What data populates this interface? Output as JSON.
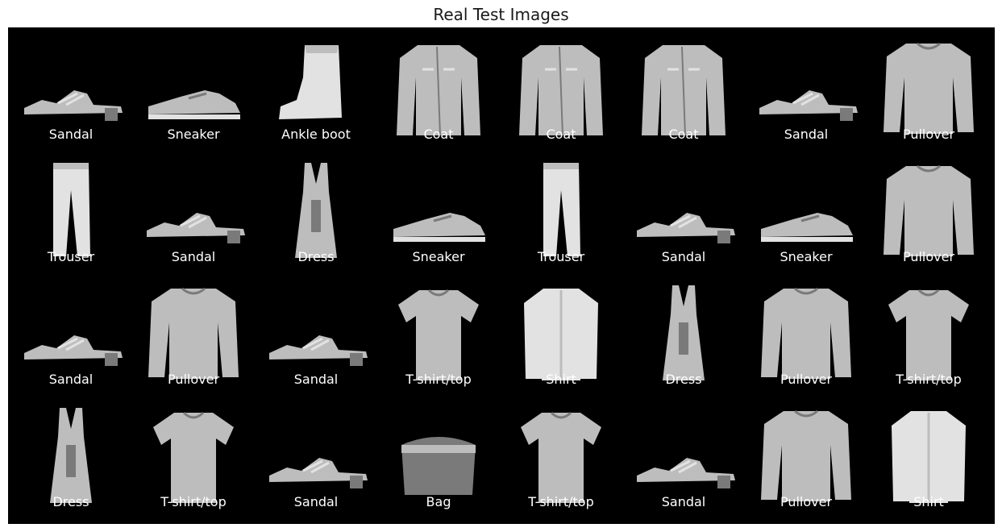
{
  "title": "Real Test Images",
  "grid": {
    "rows": 4,
    "cols": 8,
    "labels": [
      "Sandal",
      "Sneaker",
      "Ankle boot",
      "Coat",
      "Coat",
      "Coat",
      "Sandal",
      "Pullover",
      "Trouser",
      "Sandal",
      "Dress",
      "Sneaker",
      "Trouser",
      "Sandal",
      "Sneaker",
      "Pullover",
      "Sandal",
      "Pullover",
      "Sandal",
      "T-shirt/top",
      "Shirt",
      "Dress",
      "Pullover",
      "T-shirt/top",
      "Dress",
      "T-shirt/top",
      "Sandal",
      "Bag",
      "T-shirt/top",
      "Sandal",
      "Pullover",
      "Shirt"
    ]
  }
}
